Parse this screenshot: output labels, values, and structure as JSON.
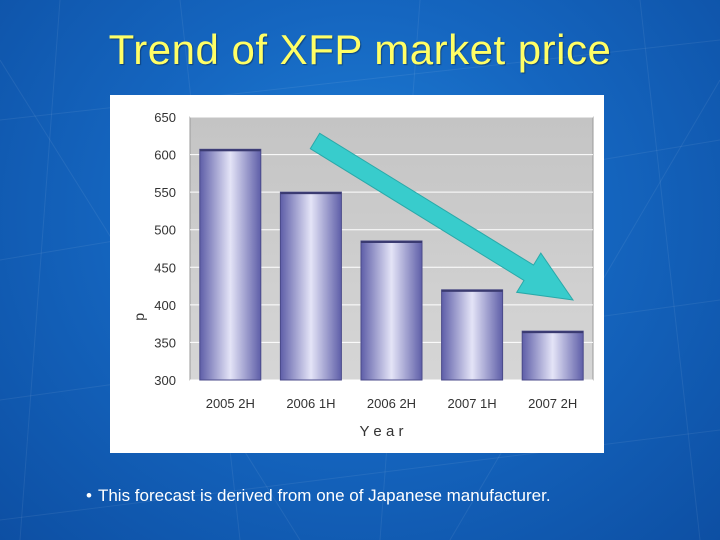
{
  "slide": {
    "title": "Trend of XFP market price",
    "footnote": "This forecast is derived from one of Japanese manufacturer.",
    "bullet": "•"
  },
  "colors": {
    "background": "#1566c0",
    "title": "#ffff66",
    "bar_dark": "#5e5ea8",
    "bar_light": "#e4e4f7",
    "arrow": "#38cccc",
    "plot_bg": "#c8c8c8"
  },
  "chart_data": {
    "type": "bar",
    "title": "",
    "xlabel": "Y e a r",
    "ylabel": "p",
    "categories": [
      "2005 2H",
      "2006 1H",
      "2006 2H",
      "2007 1H",
      "2007 2H"
    ],
    "values": [
      607,
      550,
      485,
      420,
      365
    ],
    "ylim": [
      300,
      650
    ],
    "yticks": [
      300,
      350,
      400,
      450,
      500,
      550,
      600,
      650
    ],
    "grid": true,
    "annotation": "downward-trend-arrow"
  }
}
